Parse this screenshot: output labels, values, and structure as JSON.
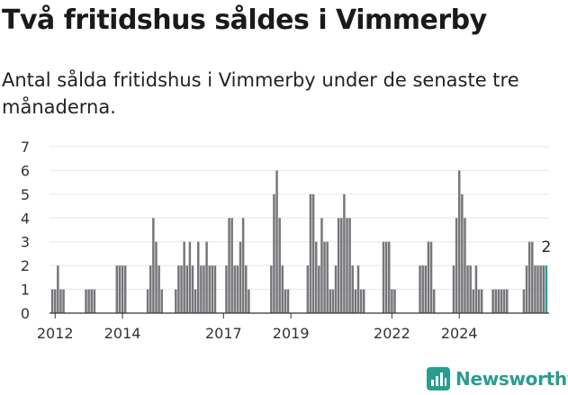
{
  "header": {
    "title": "Två fritidshus såldes i Vimmerby",
    "subtitle": "Antal sålda fritidshus i Vimmerby under de senaste tre månaderna."
  },
  "brand": {
    "name": "Newsworthy",
    "color": "#2a9d8f",
    "icon": "newsworthy-chart-logo-icon"
  },
  "colors": {
    "bar": "#77767a",
    "highlight": "#2a9d8f",
    "grid": "#e6e6e6",
    "axis": "#333333"
  },
  "chart_data": {
    "type": "bar",
    "title": "Två fritidshus såldes i Vimmerby",
    "subtitle": "Antal sålda fritidshus i Vimmerby under de senaste tre månaderna.",
    "xlabel": "",
    "ylabel": "",
    "ylim": [
      0,
      7
    ],
    "yticks": [
      0,
      1,
      2,
      3,
      4,
      5,
      6,
      7
    ],
    "xticks": [
      "2012",
      "2014",
      "2017",
      "2019",
      "2022",
      "2024"
    ],
    "xtick_positions": [
      1,
      25,
      61,
      85,
      121,
      145
    ],
    "grid": true,
    "legend": "none",
    "period": "rolling three-month count, monthly, 2012–2024",
    "values": [
      1,
      1,
      2,
      1,
      1,
      0,
      0,
      0,
      0,
      0,
      0,
      0,
      1,
      1,
      1,
      1,
      0,
      0,
      0,
      0,
      0,
      0,
      0,
      2,
      2,
      2,
      2,
      0,
      0,
      0,
      0,
      0,
      0,
      0,
      1,
      2,
      4,
      3,
      2,
      1,
      0,
      0,
      0,
      0,
      1,
      2,
      2,
      3,
      2,
      3,
      2,
      1,
      3,
      2,
      2,
      3,
      2,
      2,
      2,
      0,
      0,
      0,
      2,
      4,
      4,
      2,
      2,
      3,
      4,
      2,
      1,
      0,
      0,
      0,
      0,
      0,
      0,
      0,
      2,
      5,
      6,
      4,
      2,
      1,
      1,
      0,
      0,
      0,
      0,
      0,
      0,
      2,
      5,
      5,
      3,
      2,
      4,
      3,
      3,
      1,
      1,
      2,
      4,
      4,
      5,
      4,
      4,
      2,
      1,
      2,
      1,
      1,
      0,
      0,
      0,
      0,
      0,
      0,
      3,
      3,
      3,
      1,
      1,
      0,
      0,
      0,
      0,
      0,
      0,
      0,
      0,
      2,
      2,
      2,
      3,
      3,
      1,
      0,
      0,
      0,
      0,
      0,
      0,
      2,
      4,
      6,
      5,
      4,
      2,
      2,
      1,
      2,
      1,
      1,
      0,
      0,
      0,
      1,
      1,
      1,
      1,
      1,
      1,
      0,
      0,
      0,
      0,
      0,
      1,
      2,
      3,
      3,
      2,
      2,
      2,
      2,
      2
    ],
    "highlight_last": true,
    "last_value_label": "2"
  }
}
